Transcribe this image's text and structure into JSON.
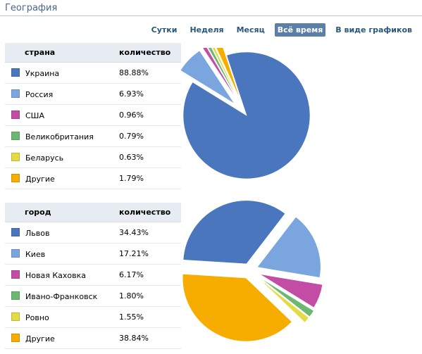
{
  "header": {
    "title": "География"
  },
  "periods": [
    {
      "label": "Сутки",
      "active": false
    },
    {
      "label": "Неделя",
      "active": false
    },
    {
      "label": "Месяц",
      "active": false
    },
    {
      "label": "Всё время",
      "active": true
    },
    {
      "label": "В виде графиков",
      "active": false
    }
  ],
  "countries": {
    "col_name": "страна",
    "col_value": "количество",
    "rows": [
      {
        "name": "Украина",
        "value": "88.88%",
        "color": "#4a76be"
      },
      {
        "name": "Россия",
        "value": "6.93%",
        "color": "#7ba5df"
      },
      {
        "name": "США",
        "value": "0.96%",
        "color": "#c34ca4"
      },
      {
        "name": "Великобритания",
        "value": "0.79%",
        "color": "#6cb872"
      },
      {
        "name": "Беларусь",
        "value": "0.63%",
        "color": "#e1dc44"
      },
      {
        "name": "Другие",
        "value": "1.79%",
        "color": "#f6ad00"
      }
    ]
  },
  "cities": {
    "col_name": "город",
    "col_value": "количество",
    "rows": [
      {
        "name": "Львов",
        "value": "34.43%",
        "color": "#4a76be"
      },
      {
        "name": "Киев",
        "value": "17.21%",
        "color": "#7ba5df"
      },
      {
        "name": "Новая Каховка",
        "value": "6.17%",
        "color": "#c34ca4"
      },
      {
        "name": "Ивано-Франковск",
        "value": "1.80%",
        "color": "#6cb872"
      },
      {
        "name": "Ровно",
        "value": "1.55%",
        "color": "#e1dc44"
      },
      {
        "name": "Другие",
        "value": "38.84%",
        "color": "#f6ad00"
      }
    ]
  },
  "chart_data": [
    {
      "type": "pie",
      "categories": [
        "Украина",
        "Россия",
        "США",
        "Великобритания",
        "Беларусь",
        "Другие"
      ],
      "values": [
        88.88,
        6.93,
        0.96,
        0.79,
        0.63,
        1.79
      ],
      "colors": [
        "#4a76be",
        "#7ba5df",
        "#c34ca4",
        "#6cb872",
        "#e1dc44",
        "#f6ad00"
      ]
    },
    {
      "type": "pie",
      "categories": [
        "Львов",
        "Киев",
        "Новая Каховка",
        "Ивано-Франковск",
        "Ровно",
        "Другие"
      ],
      "values": [
        34.43,
        17.21,
        6.17,
        1.8,
        1.55,
        38.84
      ],
      "colors": [
        "#4a76be",
        "#7ba5df",
        "#c34ca4",
        "#6cb872",
        "#e1dc44",
        "#f6ad00"
      ]
    }
  ]
}
